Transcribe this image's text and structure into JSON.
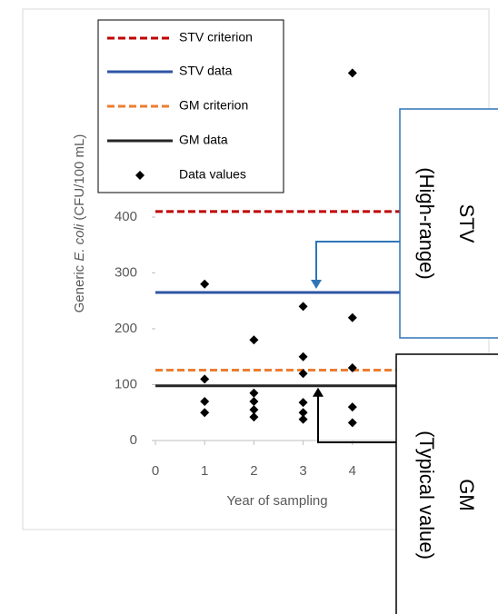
{
  "chart_data": {
    "type": "scatter",
    "y_label": [
      "Generic",
      "E. coli",
      "(CFU/100 mL)"
    ],
    "x_label": "Year of sampling",
    "xlim": [
      0,
      5
    ],
    "xticks": [
      0,
      1,
      2,
      3,
      4
    ],
    "ylim": [
      0,
      700
    ],
    "yticks": [
      0,
      100,
      200,
      300,
      400
    ],
    "lines": [
      {
        "name": "STV criterion",
        "color": "#c00000",
        "dashed": true,
        "value": 410
      },
      {
        "name": "STV data",
        "color": "#2f55a4",
        "dashed": false,
        "value": 265
      },
      {
        "name": "GM criterion",
        "color": "#ed7d31",
        "dashed": true,
        "value": 126
      },
      {
        "name": "GM data",
        "color": "#262626",
        "dashed": false,
        "value": 98
      }
    ],
    "points": {
      "name": "Data values",
      "color": "#000000",
      "x": [
        1,
        1,
        1,
        1,
        2,
        2,
        2,
        2,
        2,
        3,
        3,
        3,
        3,
        3,
        3,
        4,
        4,
        4,
        4,
        4
      ],
      "values": [
        280,
        110,
        70,
        50,
        180,
        85,
        70,
        55,
        42,
        240,
        150,
        120,
        68,
        50,
        38,
        658,
        220,
        130,
        60,
        32
      ]
    },
    "annotations": [
      {
        "title": "STV",
        "subtitle": "(High-range)",
        "value": 265
      },
      {
        "title": "GM",
        "subtitle": "(Typical value)",
        "value": 98
      }
    ],
    "legend": "upper left"
  }
}
